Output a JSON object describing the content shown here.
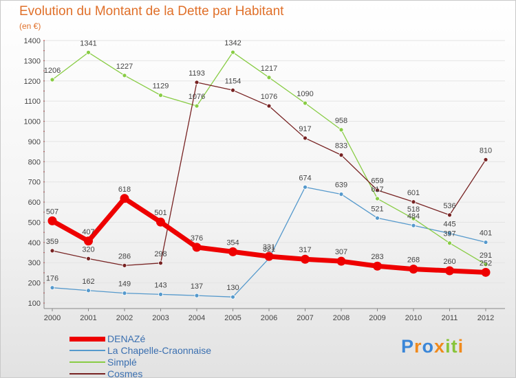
{
  "header": {
    "title": "Evolution du Montant de la Dette par Habitant",
    "subtitle": "(en €)"
  },
  "logo": {
    "letters": [
      "P",
      "r",
      "o",
      "x",
      "i",
      "t",
      "i"
    ],
    "colors": [
      "#3a86d8",
      "#f08a1c",
      "#3a86d8",
      "#f08a1c",
      "#88c43a",
      "#88c43a",
      "#f08a1c"
    ]
  },
  "chart_data": {
    "type": "line",
    "title": "Evolution du Montant de la Dette par Habitant",
    "subtitle": "(en €)",
    "x": [
      "2000",
      "2001",
      "2002",
      "2003",
      "2004",
      "2005",
      "2006",
      "2007",
      "2008",
      "2009",
      "2010",
      "2011",
      "2012"
    ],
    "ylim": [
      100,
      1400
    ],
    "yticks": [
      100,
      200,
      300,
      400,
      500,
      600,
      700,
      800,
      900,
      1000,
      1100,
      1200,
      1300,
      1400
    ],
    "grid": "horizontal",
    "legend_position": "bottom-left",
    "series": [
      {
        "name": "DENAZé",
        "color": "#ee0000",
        "values": [
          507,
          407,
          618,
          501,
          376,
          354,
          331,
          317,
          307,
          283,
          268,
          260,
          252
        ]
      },
      {
        "name": "La Chapelle-Craonnaise",
        "color": "#5599cc",
        "values": [
          176,
          162,
          149,
          143,
          137,
          130,
          321,
          674,
          639,
          521,
          484,
          445,
          401
        ]
      },
      {
        "name": "Simplé",
        "color": "#88cc44",
        "values": [
          1206,
          1341,
          1227,
          1129,
          1076,
          1342,
          1217,
          1090,
          958,
          617,
          518,
          397,
          291
        ]
      },
      {
        "name": "Cosmes",
        "color": "#772222",
        "values": [
          359,
          320,
          286,
          298,
          1193,
          1154,
          1076,
          917,
          833,
          659,
          601,
          536,
          810
        ]
      }
    ]
  }
}
